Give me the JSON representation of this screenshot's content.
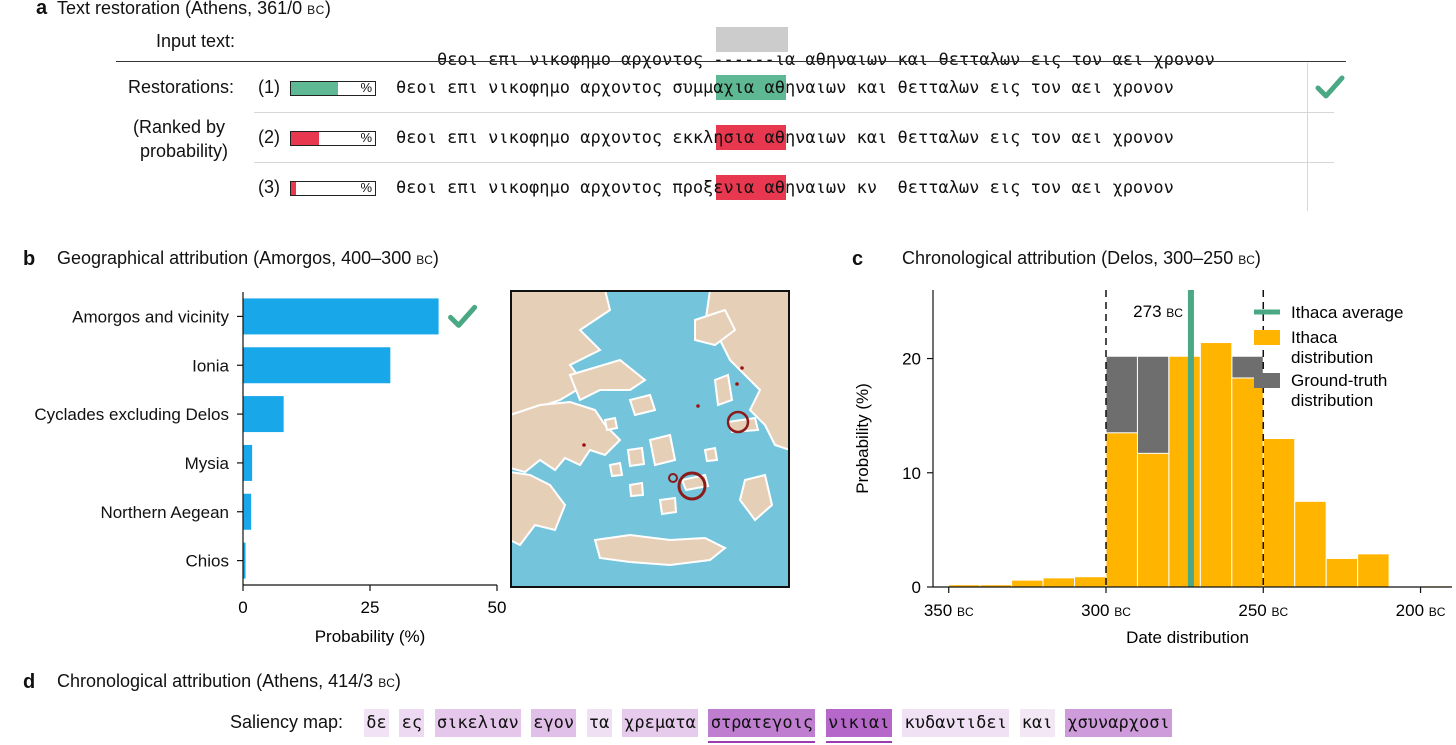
{
  "panel_a": {
    "letter": "a",
    "title": "Text restoration (Athens, 361/0 ",
    "title_sc": "bc",
    "title_end": ")",
    "input_label": "Input text:",
    "input_prefix": "θεοι επι νικοφημο αρχοντος ",
    "input_missing": "------",
    "input_suffix": "ια αθηναιων και θετταλων εις τον αει χρονον",
    "restorations_label": "Restorations:",
    "ranked_line1": "(Ranked by",
    "ranked_line2": "probability)",
    "rows": [
      {
        "rank": "(1)",
        "prob": 0.56,
        "bar_color": "#5fb894",
        "prefix": "θεοι επι νικοφημο αρχοντος ",
        "restored": "συμμαχ",
        "suffix": "ια αθηναιων και θετταλων εις τον αει χρονον",
        "hl_color": "#5fb894",
        "pct": "%",
        "check": true
      },
      {
        "rank": "(2)",
        "prob": 0.33,
        "bar_color": "#e8384f",
        "prefix": "θεοι επι νικοφημο αρχοντος ",
        "restored": "εκκλησ",
        "suffix": "ια αθηναιων και θετταλων εις τον αει χρονον",
        "hl_color": "#e8384f",
        "pct": "%",
        "check": false
      },
      {
        "rank": "(3)",
        "prob": 0.06,
        "bar_color": "#e8384f",
        "prefix": "θεοι επι νικοφημο αρχοντος ",
        "restored": "προξεν",
        "suffix": "ια αθηναιων κν  θετταλων εις τον αει χρονον",
        "hl_color": "#e8384f",
        "pct": "%",
        "check": false
      }
    ],
    "check_color": "#4aa884"
  },
  "panel_b": {
    "letter": "b",
    "title": "Geographical attribution (Amorgos, 400–300 ",
    "title_sc": "bc",
    "title_end": ")"
  },
  "panel_c": {
    "letter": "c",
    "title": "Chronological attribution (Delos, 300–250 ",
    "title_sc": "bc",
    "title_end": ")",
    "avg_label": "273 ",
    "avg_label_sc": "bc"
  },
  "panel_d": {
    "letter": "d",
    "title": "Chronological attribution (Athens, 414/3 ",
    "title_sc": "bc",
    "title_end": ")",
    "saliency_label": "Saliency map:",
    "words": [
      {
        "text": "δε",
        "intensity": 0.06
      },
      {
        "text": "ες",
        "intensity": 0.12
      },
      {
        "text": "σικελιαν",
        "intensity": 0.25
      },
      {
        "text": "εγον",
        "intensity": 0.3
      },
      {
        "text": "τα",
        "intensity": 0.08
      },
      {
        "text": "χρεματα",
        "intensity": 0.22
      },
      {
        "text": "στρατεγοις",
        "intensity": 0.75,
        "underline": true
      },
      {
        "text": "νικιαι",
        "intensity": 0.9,
        "underline": true
      },
      {
        "text": "κυδαντιδει",
        "intensity": 0.07
      },
      {
        "text": "και",
        "intensity": 0.03
      },
      {
        "text": "χσυναρχοσι",
        "intensity": 0.55
      }
    ]
  },
  "chart_data": [
    {
      "type": "bar",
      "orientation": "horizontal",
      "categories": [
        "Amorgos and vicinity",
        "Ionia",
        "Cyclades excluding Delos",
        "Mysia",
        "Northern Aegean",
        "Chios"
      ],
      "values": [
        38.5,
        29,
        8,
        1.8,
        1.6,
        0.5
      ],
      "xlabel": "Probability (%)",
      "xlim": [
        0,
        50
      ],
      "xticks": [
        "0",
        "25",
        "50"
      ],
      "bar_color": "#18a8ea",
      "check_on": "Amorgos and vicinity",
      "check_color": "#4aa884"
    },
    {
      "type": "bar",
      "subtype": "histogram",
      "xlabel": "Date distribution",
      "ylabel": "Probability (%)",
      "xlim": [
        -355,
        -190
      ],
      "ylim": [
        0,
        26
      ],
      "xticks": [
        {
          "value": -350,
          "num": "350",
          "sc": "bc"
        },
        {
          "value": -300,
          "num": "300",
          "sc": "bc"
        },
        {
          "value": -250,
          "num": "250",
          "sc": "bc"
        },
        {
          "value": -200,
          "num": "200",
          "sc": "bc"
        }
      ],
      "yticks": [
        0,
        10,
        20
      ],
      "bin_width": 10,
      "series": [
        {
          "name": "Ground-truth distribution",
          "color": "#6e6e6e",
          "bins": [
            {
              "start": -300,
              "value": 20.2
            },
            {
              "start": -290,
              "value": 20.2
            },
            {
              "start": -280,
              "value": 20.2
            },
            {
              "start": -270,
              "value": 20.2
            },
            {
              "start": -260,
              "value": 20.2
            }
          ]
        },
        {
          "name": "Ithaca distribution",
          "color": "#ffb400",
          "bins": [
            {
              "start": -350,
              "value": 0.2
            },
            {
              "start": -340,
              "value": 0.2
            },
            {
              "start": -330,
              "value": 0.6
            },
            {
              "start": -320,
              "value": 0.8
            },
            {
              "start": -310,
              "value": 0.9
            },
            {
              "start": -300,
              "value": 13.5
            },
            {
              "start": -290,
              "value": 11.7
            },
            {
              "start": -280,
              "value": 20.2
            },
            {
              "start": -270,
              "value": 21.4
            },
            {
              "start": -260,
              "value": 18.3
            },
            {
              "start": -250,
              "value": 13.0
            },
            {
              "start": -240,
              "value": 7.5
            },
            {
              "start": -230,
              "value": 2.5
            },
            {
              "start": -220,
              "value": 2.9
            },
            {
              "start": -210,
              "value": 0.0
            },
            {
              "start": -200,
              "value": 0.1
            }
          ]
        },
        {
          "name": "Ithaca average",
          "color": "#4aa884",
          "x": -273
        }
      ],
      "ground_truth_range": [
        -300,
        -250
      ],
      "legend_position": "top-right"
    }
  ]
}
